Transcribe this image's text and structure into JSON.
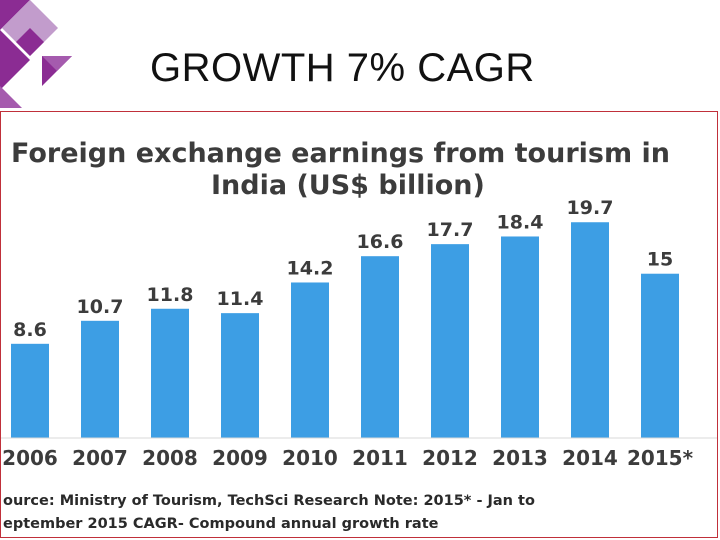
{
  "slide": {
    "title": "GROWTH 7% CAGR"
  },
  "colors": {
    "bar": "#3d9ee4",
    "frame": "#c0303a",
    "deco_purple": "#8b2c93",
    "deco_light": "#c29ccc",
    "text": "#3c3c3c"
  },
  "chart_data": {
    "type": "bar",
    "title_lines": [
      "Foreign exchange earnings from tourism in",
      "India (US$ billion)"
    ],
    "categories": [
      "2006",
      "2007",
      "2008",
      "2009",
      "2010",
      "2011",
      "2012",
      "2013",
      "2014",
      "2015*"
    ],
    "values": [
      8.6,
      10.7,
      11.8,
      11.4,
      14.2,
      16.6,
      17.7,
      18.4,
      19.7,
      15
    ],
    "value_labels": [
      "8.6",
      "10.7",
      "11.8",
      "11.4",
      "14.2",
      "16.6",
      "17.7",
      "18.4",
      "19.7",
      "15"
    ],
    "ylim": [
      0,
      21
    ],
    "grid": false,
    "legend": "none",
    "source_lines": [
      "ource: Ministry of Tourism, TechSci Research Note: 2015* - Jan to",
      "eptember 2015 CAGR- Compound annual growth rate"
    ]
  }
}
